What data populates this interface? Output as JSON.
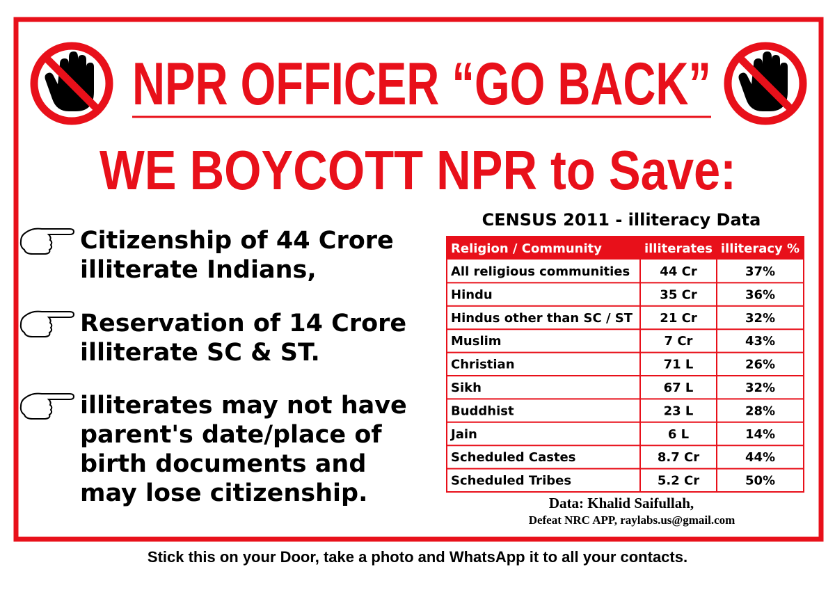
{
  "header": {
    "title": "NPR OFFICER “GO BACK”",
    "subtitle": "WE BOYCOTT NPR to Save:"
  },
  "bullets": [
    {
      "lines": [
        "Citizenship of 44 Crore",
        "illiterate Indians,"
      ]
    },
    {
      "lines": [
        "Reservation of 14 Crore",
        "illiterate SC & ST."
      ]
    },
    {
      "lines": [
        "illiterates may not have",
        "parent's date/place of",
        "birth documents and",
        "may lose citizenship."
      ]
    }
  ],
  "table": {
    "title": "CENSUS 2011 - illiteracy Data",
    "columns": [
      "Religion / Community",
      "illiterates",
      "illiteracy %"
    ],
    "rows": [
      [
        "All religious communities",
        "44 Cr",
        "37%"
      ],
      [
        "Hindu",
        "35 Cr",
        "36%"
      ],
      [
        "Hindus other than SC / ST",
        "21 Cr",
        "32%"
      ],
      [
        "Muslim",
        "7 Cr",
        "43%"
      ],
      [
        "Christian",
        "71 L",
        "26%"
      ],
      [
        "Sikh",
        "67 L",
        "32%"
      ],
      [
        "Buddhist",
        "23 L",
        "28%"
      ],
      [
        "Jain",
        "6 L",
        "14%"
      ],
      [
        "Scheduled Castes",
        "8.7 Cr",
        "44%"
      ],
      [
        "Scheduled Tribes",
        "5.2 Cr",
        "50%"
      ]
    ]
  },
  "credits": [
    "Data: Khalid Saifullah,",
    "Defeat NRC APP, raylabs.us@gmail.com"
  ],
  "footer": "Stick this on your Door, take a photo and WhatsApp it to all your contacts."
}
